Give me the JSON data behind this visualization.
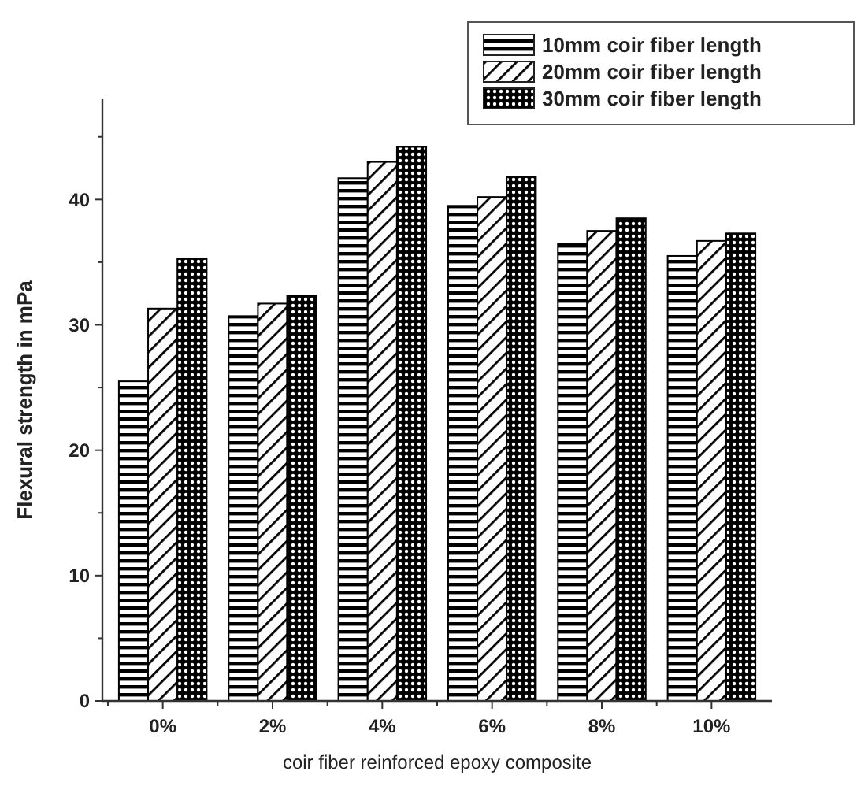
{
  "chart_data": {
    "type": "bar",
    "xlabel": "coir fiber reinforced epoxy composite",
    "ylabel": "Flexural strength in mPa",
    "categories": [
      "0%",
      "2%",
      "4%",
      "6%",
      "8%",
      "10%"
    ],
    "series": [
      {
        "name": "10mm coir fiber length",
        "color": "#000000",
        "values": [
          25.5,
          30.7,
          41.7,
          39.5,
          36.5,
          35.5
        ]
      },
      {
        "name": "20mm coir fiber length",
        "color": "#000000",
        "values": [
          31.3,
          31.7,
          43.0,
          40.2,
          37.5,
          36.7
        ]
      },
      {
        "name": "30mm coir fiber length",
        "color": "#000000",
        "values": [
          35.3,
          32.3,
          44.2,
          41.8,
          38.5,
          37.3
        ]
      }
    ],
    "ylim": [
      0,
      48
    ],
    "yticks": [
      0,
      {
        "value": 5,
        "label": null
      },
      10,
      {
        "value": 15,
        "label": null
      },
      20,
      {
        "value": 25,
        "label": null
      },
      30,
      {
        "value": 35,
        "label": null
      },
      40,
      {
        "value": 45,
        "label": null
      }
    ],
    "grid": false,
    "legend": "top right"
  }
}
